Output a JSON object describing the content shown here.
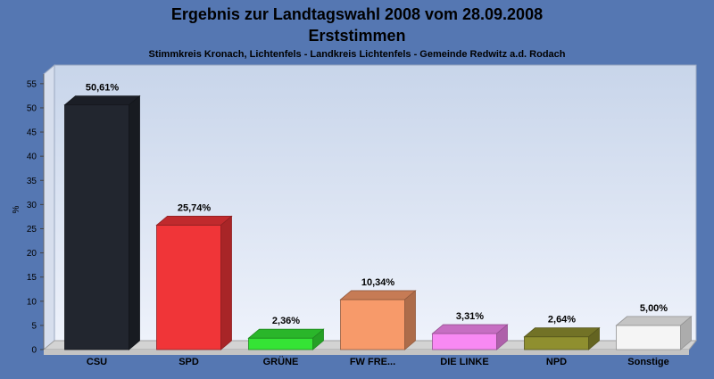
{
  "chart_data": {
    "type": "bar",
    "title": "Ergebnis zur Landtagswahl 2008 vom 28.09.2008",
    "subtitle": "Erststimmen",
    "caption": "Stimmkreis Kronach, Lichtenfels - Landkreis Lichtenfels - Gemeinde Redwitz a.d. Rodach",
    "ylabel": "%",
    "xlabel": "",
    "ylim": [
      0,
      57
    ],
    "yticks": [
      0,
      5,
      10,
      15,
      20,
      25,
      30,
      35,
      40,
      45,
      50,
      55
    ],
    "categories": [
      "CSU",
      "SPD",
      "GRÜNE",
      "FW FRE...",
      "DIE LINKE",
      "NPD",
      "Sonstige"
    ],
    "values": [
      50.61,
      25.74,
      2.36,
      10.34,
      3.31,
      2.64,
      5.0
    ],
    "value_labels": [
      "50,61%",
      "25,74%",
      "2,36%",
      "10,34%",
      "3,31%",
      "2,64%",
      "5,00%"
    ],
    "colors": [
      "#22262f",
      "#f03538",
      "#35e435",
      "#f79a6a",
      "#f889f3",
      "#8f8f2f",
      "#f5f5f5"
    ],
    "grid": false,
    "legend": "none",
    "style": "3d"
  },
  "colors": {
    "background": "#5577b2",
    "plot_top": "#ccd8ea",
    "plot_bottom": "#e9effa"
  }
}
